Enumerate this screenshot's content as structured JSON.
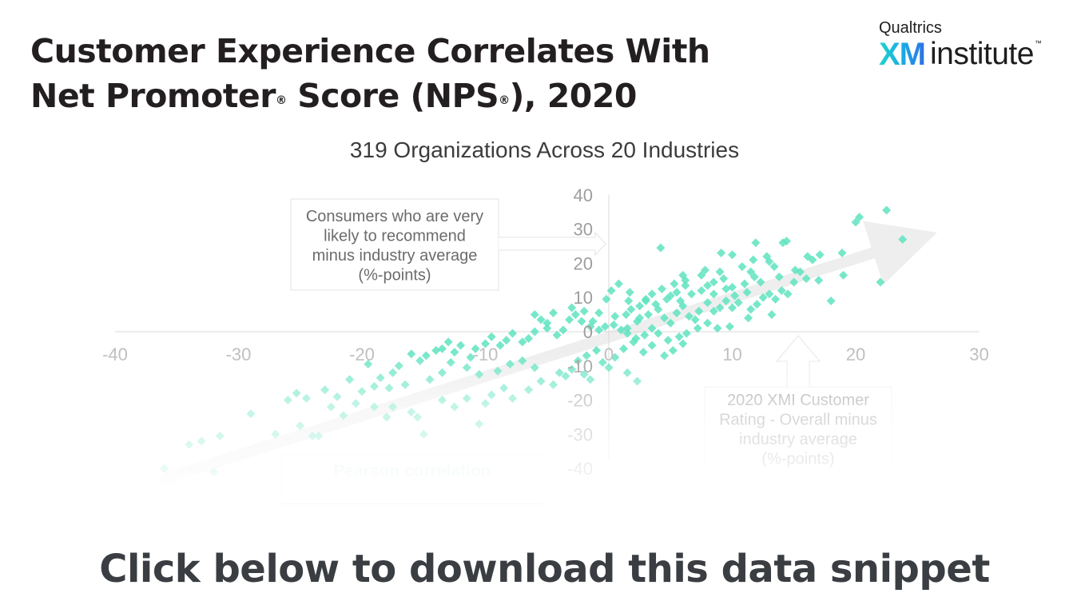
{
  "header": {
    "title_line1": "Customer Experience Correlates With",
    "title_line2_a": "Net Promoter",
    "title_reg": "®",
    "title_line2_b": " Score (NPS",
    "title_line2_c": "), 2020"
  },
  "logo": {
    "brand": "Qualtrics",
    "xm": "XM",
    "institute": "institute",
    "tm": "™"
  },
  "cta": {
    "label": "Click below to download this data snippet"
  },
  "colors": {
    "marker": "#5fe3bf",
    "axis": "#d8d8d8",
    "tick": "#bdbdbd",
    "trend": "#eeeeee"
  },
  "chart_data": {
    "type": "scatter",
    "title": "319 Organizations Across 20 Industries",
    "xlabel": "2020 XMI Customer Rating - Overall minus industry average (%-points)",
    "ylabel": "Consumers who are very likely to recommend minus industry average (%-points)",
    "ylabel_lines": [
      "Consumers who are very",
      "likely to recommend",
      "minus industry average",
      "(%-points)"
    ],
    "xlabel_lines": [
      "2020 XMI Customer",
      "Rating - Overall minus",
      "industry average",
      "(%-points)"
    ],
    "annotation_lines": [
      "Pearson correlation"
    ],
    "xlim": [
      -40,
      30
    ],
    "ylim": [
      -40,
      40
    ],
    "xticks": [
      -40,
      -30,
      -20,
      -10,
      0,
      10,
      20,
      30
    ],
    "yticks": [
      40,
      30,
      20,
      10,
      0,
      -10,
      -20,
      -30,
      -40
    ],
    "grid": false,
    "trendline": {
      "from": [
        -36,
        -43
      ],
      "to": [
        24,
        26
      ]
    },
    "points": [
      [
        22.5,
        35.5
      ],
      [
        20.3,
        33.5
      ],
      [
        20.0,
        32.0
      ],
      [
        23.8,
        27.0
      ],
      [
        14.4,
        26.5
      ],
      [
        14.1,
        26.0
      ],
      [
        11.9,
        26.0
      ],
      [
        4.2,
        24.5
      ],
      [
        18.9,
        23.0
      ],
      [
        17.1,
        22.5
      ],
      [
        16.1,
        22.0
      ],
      [
        9.1,
        23.0
      ],
      [
        10.0,
        22.5
      ],
      [
        12.8,
        22.0
      ],
      [
        13.0,
        20.5
      ],
      [
        11.7,
        21.0
      ],
      [
        10.8,
        19.0
      ],
      [
        9.0,
        17.5
      ],
      [
        7.8,
        18.0
      ],
      [
        7.5,
        16.5
      ],
      [
        13.4,
        19.0
      ],
      [
        15.1,
        18.0
      ],
      [
        16.5,
        21.0
      ],
      [
        11.5,
        17.5
      ],
      [
        11.0,
        14.0
      ],
      [
        11.2,
        11.5
      ],
      [
        10.0,
        13.0
      ],
      [
        9.3,
        15.5
      ],
      [
        8.5,
        14.5
      ],
      [
        6.2,
        15.0
      ],
      [
        6.0,
        16.5
      ],
      [
        6.2,
        13.5
      ],
      [
        5.3,
        14.0
      ],
      [
        5.5,
        11.5
      ],
      [
        4.3,
        12.5
      ],
      [
        3.5,
        11.0
      ],
      [
        3.0,
        9.5
      ],
      [
        1.7,
        11.5
      ],
      [
        1.6,
        9.0
      ],
      [
        0.8,
        14.0
      ],
      [
        0.2,
        12.0
      ],
      [
        -0.2,
        9.5
      ],
      [
        -0.8,
        5.5
      ],
      [
        0.5,
        4.5
      ],
      [
        1.4,
        5.0
      ],
      [
        1.8,
        6.5
      ],
      [
        2.5,
        4.0
      ],
      [
        2.3,
        3.0
      ],
      [
        3.2,
        5.0
      ],
      [
        4.0,
        6.5
      ],
      [
        4.5,
        4.0
      ],
      [
        5.0,
        2.5
      ],
      [
        5.5,
        5.5
      ],
      [
        6.0,
        7.5
      ],
      [
        6.5,
        4.5
      ],
      [
        7.0,
        3.5
      ],
      [
        7.3,
        6.0
      ],
      [
        8.0,
        8.5
      ],
      [
        8.5,
        6.0
      ],
      [
        9.0,
        7.0
      ],
      [
        9.5,
        9.0
      ],
      [
        10.0,
        7.0
      ],
      [
        10.5,
        8.5
      ],
      [
        11.5,
        6.5
      ],
      [
        12.0,
        8.0
      ],
      [
        12.5,
        10.0
      ],
      [
        13.0,
        11.0
      ],
      [
        13.5,
        9.5
      ],
      [
        14.5,
        11.0
      ],
      [
        15.0,
        14.5
      ],
      [
        16.0,
        15.5
      ],
      [
        14.0,
        12.0
      ],
      [
        13.2,
        5.0
      ],
      [
        11.3,
        4.0
      ],
      [
        9.8,
        1.5
      ],
      [
        8.8,
        1.0
      ],
      [
        8.0,
        2.5
      ],
      [
        7.2,
        1.0
      ],
      [
        6.3,
        -0.5
      ],
      [
        5.7,
        -1.5
      ],
      [
        4.8,
        -2.5
      ],
      [
        4.0,
        -0.5
      ],
      [
        3.5,
        1.0
      ],
      [
        2.9,
        -1.0
      ],
      [
        2.2,
        -2.0
      ],
      [
        1.5,
        -0.5
      ],
      [
        1.0,
        0.5
      ],
      [
        0.4,
        2.0
      ],
      [
        -0.3,
        1.5
      ],
      [
        -0.8,
        0.5
      ],
      [
        -1.5,
        1.5
      ],
      [
        -2.2,
        3.0
      ],
      [
        -2.7,
        5.0
      ],
      [
        -3.2,
        3.5
      ],
      [
        -3.7,
        0.5
      ],
      [
        -4.2,
        -1.0
      ],
      [
        -5.0,
        1.0
      ],
      [
        -5.5,
        3.5
      ],
      [
        -6.0,
        0.0
      ],
      [
        -6.5,
        -2.0
      ],
      [
        -7.0,
        -3.0
      ],
      [
        -7.8,
        -0.5
      ],
      [
        -8.3,
        -2.5
      ],
      [
        -8.8,
        -4.0
      ],
      [
        -9.5,
        -1.5
      ],
      [
        -10.0,
        -3.5
      ],
      [
        -10.8,
        -5.0
      ],
      [
        -11.2,
        -7.5
      ],
      [
        -12.0,
        -4.0
      ],
      [
        -12.5,
        -6.0
      ],
      [
        -13.0,
        -3.0
      ],
      [
        -14.0,
        -5.5
      ],
      [
        -14.8,
        -7.0
      ],
      [
        -15.3,
        -8.5
      ],
      [
        -16.0,
        -6.5
      ],
      [
        -17.0,
        -10.0
      ],
      [
        -17.5,
        -12.0
      ],
      [
        -18.5,
        -13.5
      ],
      [
        -19.0,
        -16.0
      ],
      [
        -20.0,
        -17.5
      ],
      [
        -21.0,
        -14.0
      ],
      [
        -22.0,
        -19.0
      ],
      [
        -23.0,
        -17.0
      ],
      [
        -24.5,
        -19.5
      ],
      [
        -25.3,
        -18.0
      ],
      [
        -26.0,
        -20.0
      ],
      [
        -29.0,
        -24.0
      ],
      [
        -31.5,
        -30.5
      ],
      [
        -33.0,
        -32.0
      ],
      [
        -34.0,
        -33.0
      ],
      [
        -36.0,
        -40.0
      ],
      [
        -32.0,
        -41.0
      ],
      [
        -24.0,
        -30.5
      ],
      [
        -23.5,
        -30.5
      ],
      [
        -15.0,
        -30.0
      ],
      [
        -15.5,
        -25.0
      ],
      [
        -17.5,
        -22.0
      ],
      [
        -16.0,
        -23.5
      ],
      [
        -18.0,
        -25.0
      ],
      [
        -19.0,
        -22.0
      ],
      [
        -13.5,
        -20.0
      ],
      [
        -12.5,
        -22.0
      ],
      [
        -11.5,
        -19.5
      ],
      [
        -10.5,
        -27.0
      ],
      [
        -10.0,
        -21.0
      ],
      [
        -9.5,
        -18.5
      ],
      [
        -8.5,
        -16.5
      ],
      [
        -7.8,
        -19.5
      ],
      [
        -6.5,
        -17.0
      ],
      [
        -5.5,
        -14.5
      ],
      [
        -4.5,
        -15.5
      ],
      [
        -3.5,
        -13.0
      ],
      [
        -4.0,
        -12.0
      ],
      [
        -3.0,
        -11.0
      ],
      [
        -2.5,
        -8.5
      ],
      [
        -1.8,
        -7.0
      ],
      [
        -1.0,
        -5.5
      ],
      [
        -0.5,
        -9.0
      ],
      [
        0.5,
        -7.5
      ],
      [
        1.2,
        -5.0
      ],
      [
        2.0,
        -3.0
      ],
      [
        2.8,
        -6.0
      ],
      [
        3.5,
        -4.0
      ],
      [
        4.5,
        -7.0
      ],
      [
        5.2,
        -5.5
      ],
      [
        6.0,
        -3.5
      ],
      [
        -2.0,
        -12.5
      ],
      [
        -1.5,
        -14.0
      ],
      [
        0.0,
        -10.5
      ],
      [
        1.5,
        -12.0
      ],
      [
        2.3,
        -14.5
      ],
      [
        -6.0,
        -10.5
      ],
      [
        -7.0,
        -8.5
      ],
      [
        -8.0,
        -9.5
      ],
      [
        -9.0,
        -11.5
      ],
      [
        -10.5,
        -12.5
      ],
      [
        -11.5,
        -10.5
      ],
      [
        -12.8,
        -9.0
      ],
      [
        -13.5,
        -12.0
      ],
      [
        -14.5,
        -14.0
      ],
      [
        -16.5,
        -15.5
      ],
      [
        -17.8,
        -16.5
      ],
      [
        -20.5,
        -21.0
      ],
      [
        -21.5,
        -24.5
      ],
      [
        -22.5,
        -22.0
      ],
      [
        -25.0,
        -27.5
      ],
      [
        -27.0,
        -30.0
      ],
      [
        -19.5,
        -9.5
      ],
      [
        -13.5,
        -5.0
      ],
      [
        -6.0,
        5.0
      ],
      [
        -5.0,
        2.5
      ],
      [
        -4.5,
        5.5
      ],
      [
        -3.0,
        7.0
      ],
      [
        -2.0,
        6.0
      ],
      [
        -1.3,
        3.0
      ],
      [
        1.5,
        1.0
      ],
      [
        2.5,
        7.5
      ],
      [
        3.0,
        9.0
      ],
      [
        3.8,
        8.0
      ],
      [
        4.7,
        9.5
      ],
      [
        5.0,
        10.5
      ],
      [
        5.8,
        9.0
      ],
      [
        6.7,
        11.0
      ],
      [
        7.5,
        12.0
      ],
      [
        8.0,
        13.5
      ],
      [
        8.5,
        11.0
      ],
      [
        9.5,
        12.5
      ],
      [
        10.2,
        10.5
      ],
      [
        11.8,
        16.0
      ],
      [
        12.3,
        14.5
      ],
      [
        13.8,
        16.0
      ],
      [
        15.5,
        17.5
      ],
      [
        17.0,
        15.0
      ],
      [
        19.0,
        16.5
      ],
      [
        22.0,
        14.5
      ],
      [
        18.0,
        9.0
      ]
    ]
  }
}
